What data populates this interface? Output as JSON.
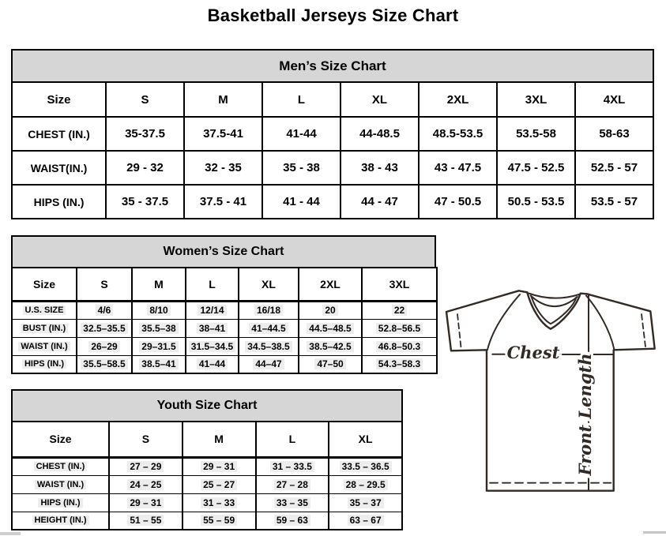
{
  "page_title": "Basketball Jerseys Size Chart",
  "tables": {
    "mens": {
      "title": "Men’s Size Chart",
      "columns": [
        "Size",
        "S",
        "M",
        "L",
        "XL",
        "2XL",
        "3XL",
        "4XL"
      ],
      "rows": [
        {
          "label": "CHEST (IN.)",
          "values": [
            "35-37.5",
            "37.5-41",
            "41-44",
            "44-48.5",
            "48.5-53.5",
            "53.5-58",
            "58-63"
          ]
        },
        {
          "label": "WAIST(IN.)",
          "values": [
            "29 - 32",
            "32 - 35",
            "35 - 38",
            "38 - 43",
            "43 - 47.5",
            "47.5 - 52.5",
            "52.5 - 57"
          ]
        },
        {
          "label": "HIPS (IN.)",
          "values": [
            "35 - 37.5",
            "37.5 - 41",
            "41 - 44",
            "44 - 47",
            "47 - 50.5",
            "50.5 - 53.5",
            "53.5 - 57"
          ]
        }
      ]
    },
    "womens": {
      "title": "Women’s Size Chart",
      "columns": [
        "Size",
        "S",
        "M",
        "L",
        "XL",
        "2XL",
        "3XL"
      ],
      "rows": [
        {
          "label": "U.S. SIZE",
          "values": [
            "4/6",
            "8/10",
            "12/14",
            "16/18",
            "20",
            "22"
          ]
        },
        {
          "label": "BUST (IN.)",
          "values": [
            "32.5–35.5",
            "35.5–38",
            "38–41",
            "41–44.5",
            "44.5–48.5",
            "52.8–56.5"
          ]
        },
        {
          "label": "WAIST (IN.)",
          "values": [
            "26–29",
            "29–31.5",
            "31.5–34.5",
            "34.5–38.5",
            "38.5–42.5",
            "46.8–50.3"
          ]
        },
        {
          "label": "HIPS (IN.)",
          "values": [
            "35.5–58.5",
            "38.5–41",
            "41–44",
            "44–47",
            "47–50",
            "54.3–58.3"
          ]
        }
      ]
    },
    "youth": {
      "title": "Youth Size Chart",
      "columns": [
        "Size",
        "S",
        "M",
        "L",
        "XL"
      ],
      "rows": [
        {
          "label": "CHEST (IN.)",
          "values": [
            "27 – 29",
            "29 – 31",
            "31 – 33.5",
            "33.5 – 36.5"
          ]
        },
        {
          "label": "WAIST (IN.)",
          "values": [
            "24 – 25",
            "25 – 27",
            "27 – 28",
            "28 – 29.5"
          ]
        },
        {
          "label": "HIPS (IN.)",
          "values": [
            "29 – 31",
            "31 – 33",
            "33 – 35",
            "35 – 37"
          ]
        },
        {
          "label": "HEIGHT (IN.)",
          "values": [
            "51 – 55",
            "55 – 59",
            "59 – 63",
            "63 – 67"
          ]
        }
      ]
    }
  },
  "diagram": {
    "chest_label": "Chest",
    "front_length_label": "Front Length"
  },
  "colors": {
    "header_bg": "#d6d6d6",
    "table_border": "#000000",
    "line_art": "#332a25"
  }
}
